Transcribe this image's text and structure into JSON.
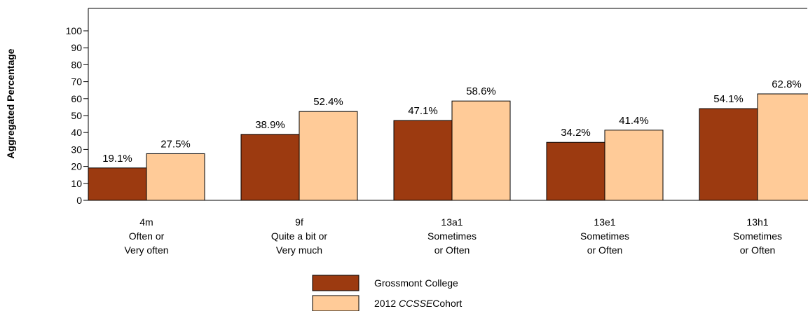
{
  "chart_data": {
    "type": "bar",
    "ylabel": "Aggregated Percentage",
    "ylim": [
      0,
      100
    ],
    "yticks": [
      "0",
      "10",
      "20",
      "30",
      "40",
      "50",
      "60",
      "70",
      "80",
      "90",
      "100"
    ],
    "categories": [
      [
        "4m",
        "Often or",
        "Very often"
      ],
      [
        "9f",
        "Quite a bit or",
        "Very much"
      ],
      [
        "13a1",
        "Sometimes",
        "or Often"
      ],
      [
        "13e1",
        "Sometimes",
        "or Often"
      ],
      [
        "13h1",
        "Sometimes",
        "or Often"
      ]
    ],
    "series": [
      {
        "name": "Grossmont College",
        "values": [
          19.1,
          38.9,
          47.1,
          34.2,
          54.1
        ],
        "labels": [
          "19.1%",
          "38.9%",
          "47.1%",
          "34.2%",
          "54.1%"
        ],
        "color": "#9C3A10"
      },
      {
        "name": "2012 CCSSE Cohort",
        "values": [
          27.5,
          52.4,
          58.6,
          41.4,
          62.8
        ],
        "labels": [
          "27.5%",
          "52.4%",
          "58.6%",
          "41.4%",
          "62.8%"
        ],
        "color": "#FFCB98"
      }
    ],
    "legend": {
      "placement": "bottom-center",
      "items": [
        {
          "prefix": "Grossmont College",
          "italic": "",
          "suffix": ""
        },
        {
          "prefix": "2012 ",
          "italic": "CCSSE",
          "suffix": "Cohort"
        }
      ]
    },
    "grid": false
  }
}
